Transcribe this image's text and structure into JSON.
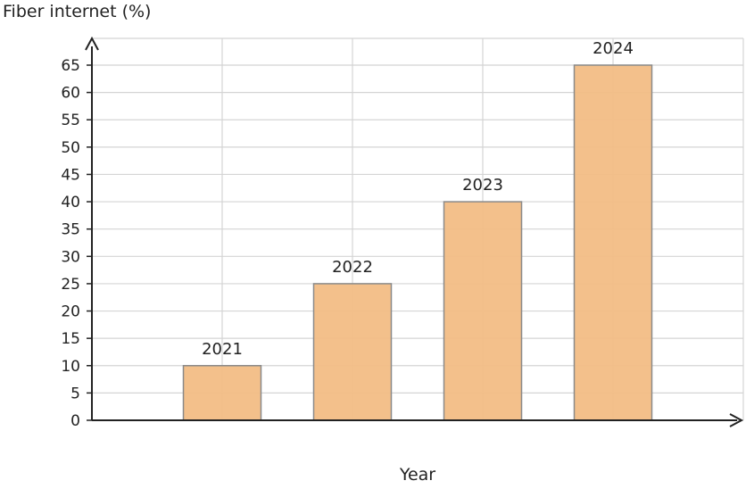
{
  "chart_data": {
    "type": "bar",
    "title": "",
    "ylabel": "Fiber internet (%)",
    "xlabel": "Year",
    "categories": [
      "2021",
      "2022",
      "2023",
      "2024"
    ],
    "values": [
      10,
      25,
      40,
      65
    ],
    "ylim": [
      0,
      70
    ],
    "yticks": [
      0,
      5,
      10,
      15,
      20,
      25,
      30,
      35,
      40,
      45,
      50,
      55,
      60,
      65
    ],
    "grid": true,
    "bar_color": "#f2bd85",
    "bar_edge_color": "#8a8a8a",
    "data_labels": "category"
  }
}
